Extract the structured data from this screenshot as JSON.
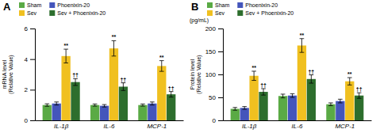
{
  "chart_data": [
    {
      "type": "bar",
      "title": "A",
      "ylabel": "mRNA level\n(Relative Value)",
      "categories": [
        "IL-1β",
        "IL-6",
        "MCP-1"
      ],
      "series": [
        {
          "name": "Sham",
          "color": "#5aaa45",
          "values": [
            1.0,
            1.0,
            1.0
          ],
          "errors": [
            0.08,
            0.07,
            0.07
          ]
        },
        {
          "name": "Phoenixin-20",
          "color": "#4455bb",
          "values": [
            1.1,
            0.95,
            1.1
          ],
          "errors": [
            0.1,
            0.08,
            0.1
          ]
        },
        {
          "name": "Sev",
          "color": "#f0c020",
          "values": [
            4.2,
            4.7,
            3.55
          ],
          "errors": [
            0.45,
            0.5,
            0.35
          ],
          "significance": [
            "**",
            "**",
            "**"
          ]
        },
        {
          "name": "Sev + Phoenixin-20",
          "color": "#2d6e2d",
          "values": [
            2.5,
            2.2,
            1.7
          ],
          "errors": [
            0.22,
            0.25,
            0.18
          ],
          "significance": [
            "††",
            "††",
            "††"
          ]
        }
      ],
      "ylim": [
        0,
        6
      ],
      "yticks": [
        0,
        2,
        4,
        6
      ],
      "grid": false,
      "legend": "top"
    },
    {
      "type": "bar",
      "title": "B",
      "ylabel": "Protein level\n(Relative Value)",
      "annotations": [
        "(pg/mL)"
      ],
      "categories": [
        "IL-1β",
        "IL-6",
        "MCP-1"
      ],
      "series": [
        {
          "name": "Sham",
          "color": "#5aaa45",
          "values": [
            25,
            53,
            35
          ],
          "errors": [
            3,
            4,
            3
          ]
        },
        {
          "name": "Phoenixin-20",
          "color": "#4455bb",
          "values": [
            27,
            54,
            42
          ],
          "errors": [
            3,
            4,
            4
          ]
        },
        {
          "name": "Sev",
          "color": "#f0c020",
          "values": [
            97,
            163,
            85
          ],
          "errors": [
            10,
            15,
            8
          ],
          "significance": [
            "**",
            "**",
            "**"
          ]
        },
        {
          "name": "Sev + Phoenixin-20",
          "color": "#2d6e2d",
          "values": [
            62,
            90,
            54
          ],
          "errors": [
            7,
            9,
            6
          ],
          "significance": [
            "††",
            "††",
            "††"
          ]
        }
      ],
      "ylim": [
        0,
        200
      ],
      "yticks": [
        0,
        50,
        100,
        150,
        200
      ],
      "grid": false,
      "legend": "top"
    }
  ]
}
